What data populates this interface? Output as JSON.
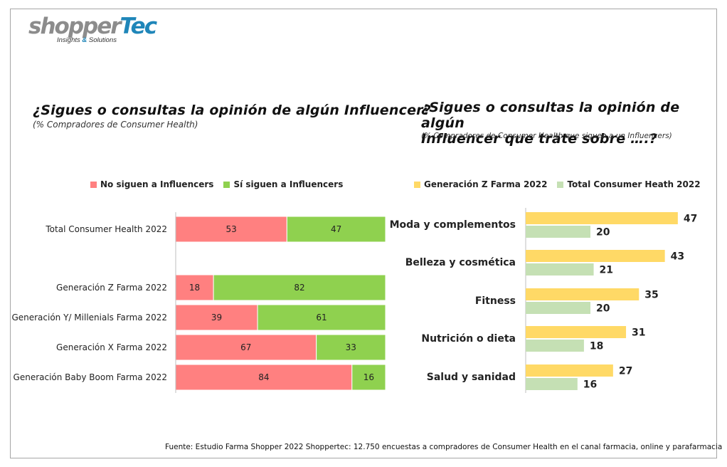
{
  "logo": {
    "brand_part1": "shopper",
    "brand_part2": "Tec",
    "tagline_part1": "Insights ",
    "tagline_amp": "&",
    "tagline_part2": " Solutions"
  },
  "colors": {
    "no_siguen": "#ff8080",
    "si_siguen": "#8fd14f",
    "gen_z": "#ffd966",
    "total": "#c5e0b4"
  },
  "chart_data": [
    {
      "type": "bar",
      "orientation": "horizontal",
      "stacked": true,
      "title": "¿Sigues o consultas la opinión de algún Influencer?",
      "subtitle": "(% Compradores de Consumer Health)",
      "legend_position": "top",
      "categories": [
        "Total Consumer Health 2022",
        "Generación Z Farma 2022",
        "Generación Y/ Millenials Farma 2022",
        "Generación X Farma 2022",
        "Generación Baby Boom Farma 2022"
      ],
      "series": [
        {
          "name": "No siguen a Influencers",
          "values": [
            53,
            18,
            39,
            67,
            84
          ]
        },
        {
          "name": "Sí siguen a Influencers",
          "values": [
            47,
            82,
            61,
            33,
            16
          ]
        }
      ],
      "xlim": [
        0,
        100
      ]
    },
    {
      "type": "bar",
      "orientation": "horizontal",
      "stacked": false,
      "title_line1": "¿Sigues o consultas la opinión de algún",
      "title_line2": "Influencer que trate sobre ….?",
      "subtitle": "(% Compradores de Consumer Health que siguen a un Influencers)",
      "legend_position": "top",
      "categories": [
        "Moda y complementos",
        "Belleza y cosmética",
        "Fitness",
        "Nutrición o dieta",
        "Salud y sanidad"
      ],
      "series": [
        {
          "name": "Generación Z Farma 2022",
          "values": [
            47,
            43,
            35,
            31,
            27
          ]
        },
        {
          "name": "Total Consumer Heath 2022",
          "values": [
            20,
            21,
            20,
            18,
            16
          ]
        }
      ]
    }
  ],
  "source": "Fuente: Estudio Farma Shopper 2022 Shoppertec: 12.750 encuestas a compradores de Consumer Health en el canal farmacia, online y parafarmacia"
}
